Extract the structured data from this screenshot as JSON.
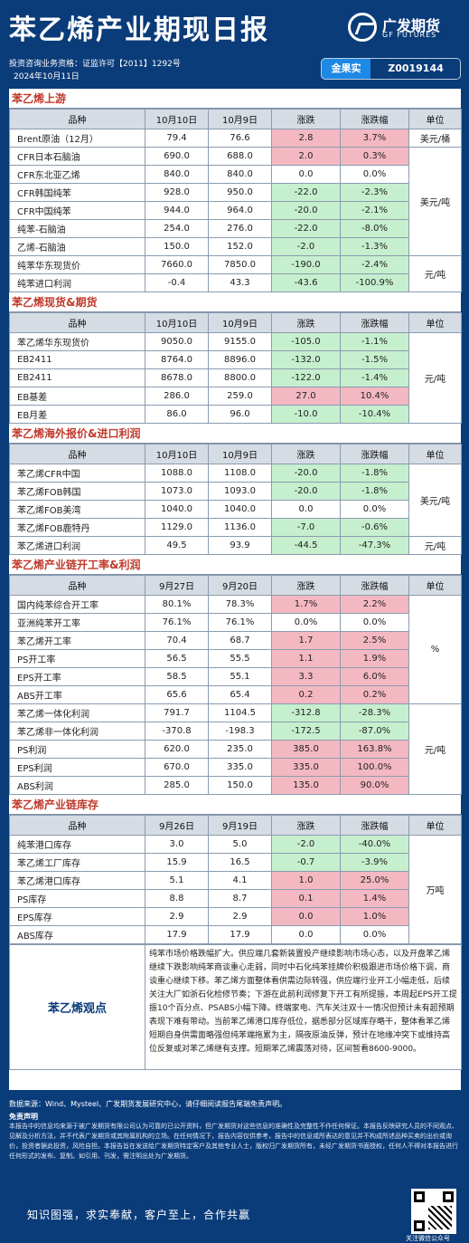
{
  "header": {
    "title": "苯乙烯产业期现日报",
    "logo_cn": "广发期货",
    "logo_en": "GF FUTURES",
    "license": "投资咨询业务资格：证监许可【2011】1292号",
    "date": "2024年10月11日",
    "analyst_name": "金果实",
    "analyst_id": "Z0019144"
  },
  "sections": [
    {
      "title": "苯乙烯上游",
      "cols": [
        "品种",
        "10月10日",
        "10月9日",
        "涨跌",
        "涨跌幅",
        "单位"
      ],
      "rows": [
        {
          "name": "Brent原油（12月）",
          "v1": "79.4",
          "v2": "76.6",
          "chg": "2.8",
          "pct": "3.7%",
          "sign": "pos"
        },
        {
          "name": "CFR日本石脑油",
          "v1": "690.0",
          "v2": "688.0",
          "chg": "2.0",
          "pct": "0.3%",
          "sign": "pos"
        },
        {
          "name": "CFR东北亚乙烯",
          "v1": "840.0",
          "v2": "840.0",
          "chg": "0.0",
          "pct": "0.0%",
          "sign": "zero"
        },
        {
          "name": "CFR韩国纯苯",
          "v1": "928.0",
          "v2": "950.0",
          "chg": "-22.0",
          "pct": "-2.3%",
          "sign": "neg"
        },
        {
          "name": "CFR中国纯苯",
          "v1": "944.0",
          "v2": "964.0",
          "chg": "-20.0",
          "pct": "-2.1%",
          "sign": "neg"
        },
        {
          "name": "纯苯-石脑油",
          "v1": "254.0",
          "v2": "276.0",
          "chg": "-22.0",
          "pct": "-8.0%",
          "sign": "neg"
        },
        {
          "name": "乙烯-石脑油",
          "v1": "150.0",
          "v2": "152.0",
          "chg": "-2.0",
          "pct": "-1.3%",
          "sign": "neg"
        },
        {
          "name": "纯苯华东现货价",
          "v1": "7660.0",
          "v2": "7850.0",
          "chg": "-190.0",
          "pct": "-2.4%",
          "sign": "neg"
        },
        {
          "name": "纯苯进口利润",
          "v1": "-0.4",
          "v2": "43.3",
          "chg": "-43.6",
          "pct": "-100.9%",
          "sign": "neg"
        }
      ],
      "units": [
        {
          "label": "美元/桶",
          "span": 1
        },
        {
          "label": "美元/吨",
          "span": 6
        },
        {
          "label": "元/吨",
          "span": 2
        }
      ]
    },
    {
      "title": "苯乙烯现货&期货",
      "cols": [
        "品种",
        "10月10日",
        "10月9日",
        "涨跌",
        "涨跌幅",
        "单位"
      ],
      "rows": [
        {
          "name": "苯乙烯华东现货价",
          "v1": "9050.0",
          "v2": "9155.0",
          "chg": "-105.0",
          "pct": "-1.1%",
          "sign": "neg"
        },
        {
          "name": "EB2411",
          "v1": "8764.0",
          "v2": "8896.0",
          "chg": "-132.0",
          "pct": "-1.5%",
          "sign": "neg"
        },
        {
          "name": "EB2411",
          "v1": "8678.0",
          "v2": "8800.0",
          "chg": "-122.0",
          "pct": "-1.4%",
          "sign": "neg"
        },
        {
          "name": "EB基差",
          "v1": "286.0",
          "v2": "259.0",
          "chg": "27.0",
          "pct": "10.4%",
          "sign": "pos"
        },
        {
          "name": "EB月差",
          "v1": "86.0",
          "v2": "96.0",
          "chg": "-10.0",
          "pct": "-10.4%",
          "sign": "neg"
        }
      ],
      "units": [
        {
          "label": "元/吨",
          "span": 5
        }
      ]
    },
    {
      "title": "苯乙烯海外报价&进口利润",
      "cols": [
        "品种",
        "10月10日",
        "10月9日",
        "涨跌",
        "涨跌幅",
        "单位"
      ],
      "rows": [
        {
          "name": "苯乙烯CFR中国",
          "v1": "1088.0",
          "v2": "1108.0",
          "chg": "-20.0",
          "pct": "-1.8%",
          "sign": "neg"
        },
        {
          "name": "苯乙烯FOB韩国",
          "v1": "1073.0",
          "v2": "1093.0",
          "chg": "-20.0",
          "pct": "-1.8%",
          "sign": "neg"
        },
        {
          "name": "苯乙烯FOB美湾",
          "v1": "1040.0",
          "v2": "1040.0",
          "chg": "0.0",
          "pct": "0.0%",
          "sign": "zero"
        },
        {
          "name": "苯乙烯FOB鹿特丹",
          "v1": "1129.0",
          "v2": "1136.0",
          "chg": "-7.0",
          "pct": "-0.6%",
          "sign": "neg"
        },
        {
          "name": "苯乙烯进口利润",
          "v1": "49.5",
          "v2": "93.9",
          "chg": "-44.5",
          "pct": "-47.3%",
          "sign": "neg"
        }
      ],
      "units": [
        {
          "label": "美元/吨",
          "span": 4
        },
        {
          "label": "元/吨",
          "span": 1
        }
      ]
    },
    {
      "title": "苯乙烯产业链开工率&利润",
      "cols": [
        "品种",
        "9月27日",
        "9月20日",
        "涨跌",
        "涨跌幅",
        "单位"
      ],
      "rows": [
        {
          "name": "国内纯苯综合开工率",
          "v1": "80.1%",
          "v2": "78.3%",
          "chg": "1.7%",
          "pct": "2.2%",
          "sign": "pos"
        },
        {
          "name": "亚洲纯苯开工率",
          "v1": "76.1%",
          "v2": "76.1%",
          "chg": "0.0%",
          "pct": "0.0%",
          "sign": "zero"
        },
        {
          "name": "苯乙烯开工率",
          "v1": "70.4",
          "v2": "68.7",
          "chg": "1.7",
          "pct": "2.5%",
          "sign": "pos"
        },
        {
          "name": "PS开工率",
          "v1": "56.5",
          "v2": "55.5",
          "chg": "1.1",
          "pct": "1.9%",
          "sign": "pos"
        },
        {
          "name": "EPS开工率",
          "v1": "58.5",
          "v2": "55.1",
          "chg": "3.3",
          "pct": "6.0%",
          "sign": "pos"
        },
        {
          "name": "ABS开工率",
          "v1": "65.6",
          "v2": "65.4",
          "chg": "0.2",
          "pct": "0.2%",
          "sign": "pos"
        },
        {
          "name": "苯乙烯一体化利润",
          "v1": "791.7",
          "v2": "1104.5",
          "chg": "-312.8",
          "pct": "-28.3%",
          "sign": "neg"
        },
        {
          "name": "苯乙烯非一体化利润",
          "v1": "-370.8",
          "v2": "-198.3",
          "chg": "-172.5",
          "pct": "-87.0%",
          "sign": "neg"
        },
        {
          "name": "PS利润",
          "v1": "620.0",
          "v2": "235.0",
          "chg": "385.0",
          "pct": "163.8%",
          "sign": "pos"
        },
        {
          "name": "EPS利润",
          "v1": "670.0",
          "v2": "335.0",
          "chg": "335.0",
          "pct": "100.0%",
          "sign": "pos"
        },
        {
          "name": "ABS利润",
          "v1": "285.0",
          "v2": "150.0",
          "chg": "135.0",
          "pct": "90.0%",
          "sign": "pos"
        }
      ],
      "units": [
        {
          "label": "%",
          "span": 6
        },
        {
          "label": "元/吨",
          "span": 5
        }
      ]
    },
    {
      "title": "苯乙烯产业链库存",
      "cols": [
        "品种",
        "9月26日",
        "9月19日",
        "涨跌",
        "涨跌幅",
        "单位"
      ],
      "rows": [
        {
          "name": "纯苯港口库存",
          "v1": "3.0",
          "v2": "5.0",
          "chg": "-2.0",
          "pct": "-40.0%",
          "sign": "neg"
        },
        {
          "name": "苯乙烯工厂库存",
          "v1": "15.9",
          "v2": "16.5",
          "chg": "-0.7",
          "pct": "-3.9%",
          "sign": "neg"
        },
        {
          "name": "苯乙烯港口库存",
          "v1": "5.1",
          "v2": "4.1",
          "chg": "1.0",
          "pct": "25.0%",
          "sign": "pos"
        },
        {
          "name": "PS库存",
          "v1": "8.8",
          "v2": "8.7",
          "chg": "0.1",
          "pct": "1.4%",
          "sign": "pos"
        },
        {
          "name": "EPS库存",
          "v1": "2.9",
          "v2": "2.9",
          "chg": "0.0",
          "pct": "1.0%",
          "sign": "pos"
        },
        {
          "name": "ABS库存",
          "v1": "17.9",
          "v2": "17.9",
          "chg": "0.0",
          "pct": "0.0%",
          "sign": "zero"
        }
      ],
      "units": [
        {
          "label": "万吨",
          "span": 6
        }
      ]
    }
  ],
  "view": {
    "label": "苯乙烯观点",
    "text": "纯苯市场价格跌幅扩大。供应端几套新装置投产继续影响市场心态，以及开盘苯乙烯继续下跌影响纯苯商谈重心走弱，同时中石化纯苯挂牌价积极跟进市场价格下调，商谈重心继续下移。苯乙烯方面整体看供需边际转强，供应端行业开工小幅走低，后续关注大厂如浙石化检修节奏；下游在此前利润修复下开工有所提振，本周起EPS开工提振10个百分点、PSABS小幅下降。终端家电、汽车关注双十一情况但预计未有超预期表现下难有带动。当前苯乙烯港口库存低位，据悉部分区域库存略干，整体看苯乙烯短期自身供需面略强但纯苯端拖累为主，隔夜原油反弹，预计在地缘冲突下或维持高位反复或对苯乙烯继有支撑。短期苯乙烯震荡对待，区间暂看8600-9000。"
  },
  "footer": {
    "source": "数据来源：Wind、Mysteel、广发期货发展研究中心，请仔细阅读报告尾端免责声明。",
    "disclaimer_title": "免责声明",
    "disclaimer": "本报告中的信息均来源于被广发期货有限公司认为可靠的已公开资料，但广发期货对这些信息的准确性及完整性不作任何保证。本报告反映研究人员的不同观点、见解及分析方法，并不代表广发期货或其附属机构的立场。在任何情况下，报告内容仅供参考，报告中的信息或所表达的意见并不构成所述品种买卖的出价或询价，投资者据此投资，风险自担。本报告旨在发送给广发期货特定客户及其他专业人士，版权归广发期货所有，未经广发期货书面授权，任何人不得对本报告进行任何形式的发布、复制。如引用、刊发，需注明出处为广发期货。",
    "slogan": "知识图强，求实奉献，客户至上，合作共赢",
    "qr_caption": "关注微信公众号"
  }
}
